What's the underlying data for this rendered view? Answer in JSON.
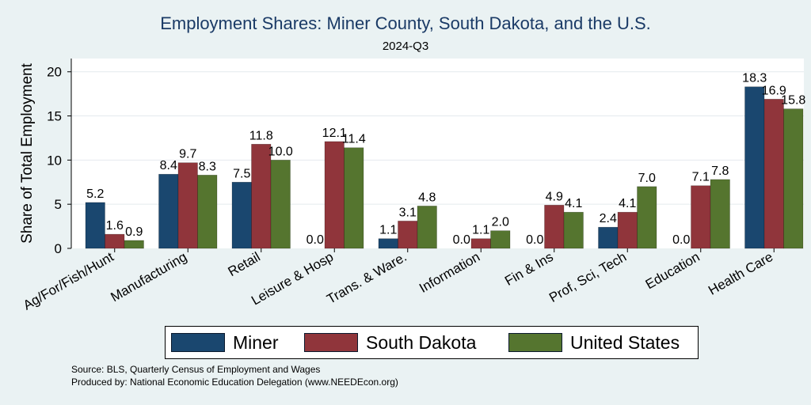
{
  "chart_data": {
    "type": "bar",
    "title": "Employment Shares: Miner County, South Dakota, and the U.S.",
    "subtitle": "2024-Q3",
    "ylabel": "Share of Total Employment",
    "xlabel": "",
    "ylim": [
      0,
      21.5
    ],
    "yticks": [
      0,
      5,
      10,
      15,
      20
    ],
    "grid": true,
    "legend_position": "bottom",
    "categories": [
      "Ag/For/Fish/Hunt",
      "Manufacturing",
      "Retail",
      "Leisure & Hosp",
      "Trans. & Ware.",
      "Information",
      "Fin & Ins",
      "Prof, Sci, Tech",
      "Education",
      "Health Care"
    ],
    "series": [
      {
        "name": "Miner",
        "color": "#1a476f",
        "values": [
          5.2,
          8.4,
          7.5,
          0.0,
          1.1,
          0.0,
          0.0,
          2.4,
          0.0,
          18.3
        ],
        "labels": [
          "5.2",
          "8.4",
          "7.5",
          "0.0",
          "1.1",
          "0.0",
          "0.0",
          "2.4",
          "0.0",
          "18.3"
        ]
      },
      {
        "name": "South Dakota",
        "color": "#90353b",
        "values": [
          1.6,
          9.7,
          11.8,
          12.1,
          3.1,
          1.1,
          4.9,
          4.1,
          7.1,
          16.9
        ],
        "labels": [
          "1.6",
          "9.7",
          "11.8",
          "12.1",
          "3.1",
          "1.1",
          "4.9",
          "4.1",
          "7.1",
          "16.9"
        ]
      },
      {
        "name": "United States",
        "color": "#55752f",
        "values": [
          0.9,
          8.3,
          10.0,
          11.4,
          4.8,
          2.0,
          4.1,
          7.0,
          7.8,
          15.8
        ],
        "labels": [
          "0.9",
          "8.3",
          "10.0",
          "11.4",
          "4.8",
          "2.0",
          "4.1",
          "7.0",
          "7.8",
          "15.8"
        ]
      }
    ]
  },
  "notes": {
    "source": "Source: BLS, Quarterly Census of Employment and Wages",
    "produced_by": "Produced by: National Economic Education Delegation (www.NEEDEcon.org)"
  }
}
